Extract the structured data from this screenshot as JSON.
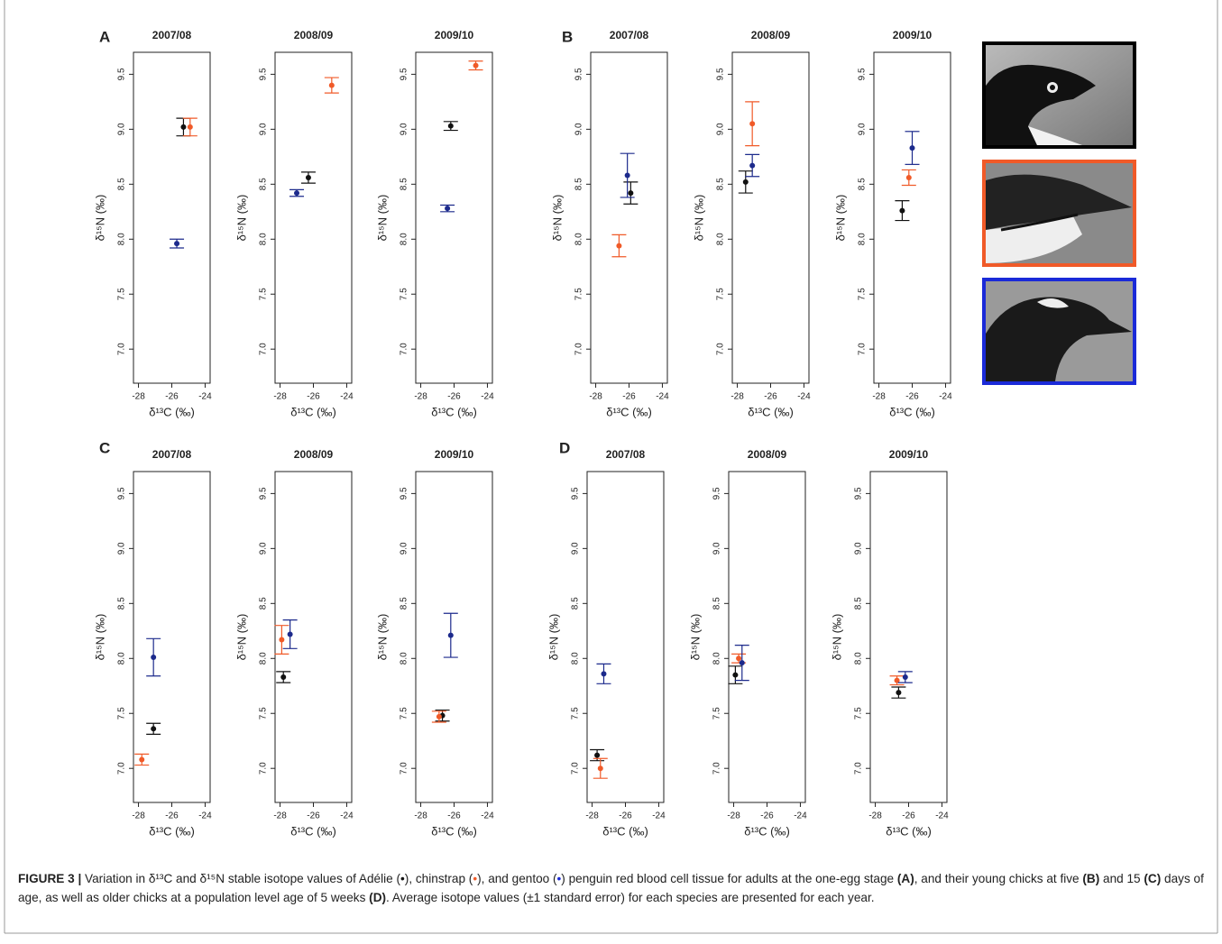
{
  "panels": [
    "A",
    "B",
    "C",
    "D"
  ],
  "chart_data": [
    {
      "type": "scatter",
      "title": "2007/08",
      "xlabel": "δ¹³C (‰)",
      "ylabel": "δ¹⁵N (‰)",
      "xlim": [
        -28.3,
        -23.7
      ],
      "ylim": [
        6.69,
        9.7
      ],
      "xticks": [
        -28,
        -26,
        -24
      ],
      "yticks": [
        {
          "value": 7,
          "label": "7.0"
        },
        7.5,
        {
          "value": 8,
          "label": "8.0"
        },
        8.5,
        {
          "value": 9,
          "label": "9.0"
        },
        9.5
      ],
      "series": [
        {
          "color": "#111111",
          "x": [
            -25.3
          ],
          "values": [
            9.02
          ],
          "yerr": [
            0.08
          ]
        },
        {
          "color": "#f05a28",
          "x": [
            -24.9
          ],
          "values": [
            9.02
          ],
          "yerr": [
            0.08
          ]
        },
        {
          "color": "#1c2a8c",
          "x": [
            -25.7
          ],
          "values": [
            7.96
          ],
          "yerr": [
            0.04
          ]
        }
      ]
    },
    {
      "type": "scatter",
      "title": "2008/09",
      "xlabel": "δ¹³C (‰)",
      "ylabel": "δ¹⁵N (‰)",
      "xlim": [
        -28.3,
        -23.7
      ],
      "ylim": [
        6.69,
        9.7
      ],
      "xticks": [
        -28,
        -26,
        -24
      ],
      "yticks": [
        {
          "value": 7,
          "label": "7.0"
        },
        7.5,
        {
          "value": 8,
          "label": "8.0"
        },
        8.5,
        {
          "value": 9,
          "label": "9.0"
        },
        9.5
      ],
      "series": [
        {
          "color": "#111111",
          "x": [
            -26.3
          ],
          "values": [
            8.56
          ],
          "yerr": [
            0.05
          ]
        },
        {
          "color": "#f05a28",
          "x": [
            -24.9
          ],
          "values": [
            9.4
          ],
          "yerr": [
            0.07
          ]
        },
        {
          "color": "#1c2a8c",
          "x": [
            -27.0
          ],
          "values": [
            8.42
          ],
          "yerr": [
            0.03
          ]
        }
      ]
    },
    {
      "type": "scatter",
      "title": "2009/10",
      "xlabel": "δ¹³C (‰)",
      "ylabel": "δ¹⁵N (‰)",
      "xlim": [
        -28.3,
        -23.7
      ],
      "ylim": [
        6.69,
        9.7
      ],
      "xticks": [
        -28,
        -26,
        -24
      ],
      "yticks": [
        {
          "value": 7,
          "label": "7.0"
        },
        7.5,
        {
          "value": 8,
          "label": "8.0"
        },
        8.5,
        {
          "value": 9,
          "label": "9.0"
        },
        9.5
      ],
      "series": [
        {
          "color": "#111111",
          "x": [
            -26.2
          ],
          "values": [
            9.03
          ],
          "yerr": [
            0.04
          ]
        },
        {
          "color": "#f05a28",
          "x": [
            -24.7
          ],
          "values": [
            9.58
          ],
          "yerr": [
            0.04
          ]
        },
        {
          "color": "#1c2a8c",
          "x": [
            -26.4
          ],
          "values": [
            8.28
          ],
          "yerr": [
            0.03
          ]
        }
      ]
    },
    {
      "type": "scatter",
      "title": "2007/08",
      "xlabel": "δ¹³C (‰)",
      "ylabel": "δ¹⁵N (‰)",
      "xlim": [
        -28.3,
        -23.7
      ],
      "ylim": [
        6.69,
        9.7
      ],
      "xticks": [
        -28,
        -26,
        -24
      ],
      "yticks": [
        {
          "value": 7,
          "label": "7.0"
        },
        7.5,
        {
          "value": 8,
          "label": "8.0"
        },
        8.5,
        {
          "value": 9,
          "label": "9.0"
        },
        9.5
      ],
      "series": [
        {
          "color": "#111111",
          "x": [
            -25.9
          ],
          "values": [
            8.42
          ],
          "yerr": [
            0.1
          ]
        },
        {
          "color": "#f05a28",
          "x": [
            -26.6
          ],
          "values": [
            7.94
          ],
          "yerr": [
            0.1
          ]
        },
        {
          "color": "#1c2a8c",
          "x": [
            -26.1
          ],
          "values": [
            8.58
          ],
          "yerr": [
            0.2
          ]
        }
      ]
    },
    {
      "type": "scatter",
      "title": "2008/09",
      "xlabel": "δ¹³C (‰)",
      "ylabel": "δ¹⁵N (‰)",
      "xlim": [
        -28.3,
        -23.7
      ],
      "ylim": [
        6.69,
        9.7
      ],
      "xticks": [
        -28,
        -26,
        -24
      ],
      "yticks": [
        {
          "value": 7,
          "label": "7.0"
        },
        7.5,
        {
          "value": 8,
          "label": "8.0"
        },
        8.5,
        {
          "value": 9,
          "label": "9.0"
        },
        9.5
      ],
      "series": [
        {
          "color": "#111111",
          "x": [
            -27.5
          ],
          "values": [
            8.52
          ],
          "yerr": [
            0.1
          ]
        },
        {
          "color": "#f05a28",
          "x": [
            -27.1
          ],
          "values": [
            9.05
          ],
          "yerr": [
            0.2
          ]
        },
        {
          "color": "#1c2a8c",
          "x": [
            -27.1
          ],
          "values": [
            8.67
          ],
          "yerr": [
            0.1
          ]
        }
      ]
    },
    {
      "type": "scatter",
      "title": "2009/10",
      "xlabel": "δ¹³C (‰)",
      "ylabel": "δ¹⁵N (‰)",
      "xlim": [
        -28.3,
        -23.7
      ],
      "ylim": [
        6.69,
        9.7
      ],
      "xticks": [
        -28,
        -26,
        -24
      ],
      "yticks": [
        {
          "value": 7,
          "label": "7.0"
        },
        7.5,
        {
          "value": 8,
          "label": "8.0"
        },
        8.5,
        {
          "value": 9,
          "label": "9.0"
        },
        9.5
      ],
      "series": [
        {
          "color": "#111111",
          "x": [
            -26.6
          ],
          "values": [
            8.26
          ],
          "yerr": [
            0.09
          ]
        },
        {
          "color": "#f05a28",
          "x": [
            -26.2
          ],
          "values": [
            8.56
          ],
          "yerr": [
            0.07
          ]
        },
        {
          "color": "#1c2a8c",
          "x": [
            -26.0
          ],
          "values": [
            8.83
          ],
          "yerr": [
            0.15
          ]
        }
      ]
    },
    {
      "type": "scatter",
      "title": "2007/08",
      "xlabel": "δ¹³C (‰)",
      "ylabel": "δ¹⁵N (‰)",
      "xlim": [
        -28.3,
        -23.7
      ],
      "ylim": [
        6.69,
        9.7
      ],
      "xticks": [
        -28,
        -26,
        -24
      ],
      "yticks": [
        {
          "value": 7,
          "label": "7.0"
        },
        7.5,
        {
          "value": 8,
          "label": "8.0"
        },
        8.5,
        {
          "value": 9,
          "label": "9.0"
        },
        9.5
      ],
      "series": [
        {
          "color": "#111111",
          "x": [
            -27.1
          ],
          "values": [
            7.36
          ],
          "yerr": [
            0.05
          ]
        },
        {
          "color": "#f05a28",
          "x": [
            -27.8
          ],
          "values": [
            7.08
          ],
          "yerr": [
            0.05
          ]
        },
        {
          "color": "#1c2a8c",
          "x": [
            -27.1
          ],
          "values": [
            8.01
          ],
          "yerr": [
            0.17
          ]
        }
      ]
    },
    {
      "type": "scatter",
      "title": "2008/09",
      "xlabel": "δ¹³C (‰)",
      "ylabel": "δ¹⁵N (‰)",
      "xlim": [
        -28.3,
        -23.7
      ],
      "ylim": [
        6.69,
        9.7
      ],
      "xticks": [
        -28,
        -26,
        -24
      ],
      "yticks": [
        {
          "value": 7,
          "label": "7.0"
        },
        7.5,
        {
          "value": 8,
          "label": "8.0"
        },
        8.5,
        {
          "value": 9,
          "label": "9.0"
        },
        9.5
      ],
      "series": [
        {
          "color": "#111111",
          "x": [
            -27.8
          ],
          "values": [
            7.83
          ],
          "yerr": [
            0.05
          ]
        },
        {
          "color": "#f05a28",
          "x": [
            -27.9
          ],
          "values": [
            8.17
          ],
          "yerr": [
            0.13
          ]
        },
        {
          "color": "#1c2a8c",
          "x": [
            -27.4
          ],
          "values": [
            8.22
          ],
          "yerr": [
            0.13
          ]
        }
      ]
    },
    {
      "type": "scatter",
      "title": "2009/10",
      "xlabel": "δ¹³C (‰)",
      "ylabel": "δ¹⁵N (‰)",
      "xlim": [
        -28.3,
        -23.7
      ],
      "ylim": [
        6.69,
        9.7
      ],
      "xticks": [
        -28,
        -26,
        -24
      ],
      "yticks": [
        {
          "value": 7,
          "label": "7.0"
        },
        7.5,
        {
          "value": 8,
          "label": "8.0"
        },
        8.5,
        {
          "value": 9,
          "label": "9.0"
        },
        9.5
      ],
      "series": [
        {
          "color": "#111111",
          "x": [
            -26.7
          ],
          "values": [
            7.48
          ],
          "yerr": [
            0.05
          ]
        },
        {
          "color": "#f05a28",
          "x": [
            -26.9
          ],
          "values": [
            7.47
          ],
          "yerr": [
            0.05
          ]
        },
        {
          "color": "#1c2a8c",
          "x": [
            -26.2
          ],
          "values": [
            8.21
          ],
          "yerr": [
            0.2
          ]
        }
      ]
    },
    {
      "type": "scatter",
      "title": "2007/08",
      "xlabel": "δ¹³C (‰)",
      "ylabel": "δ¹⁵N (‰)",
      "xlim": [
        -28.3,
        -23.7
      ],
      "ylim": [
        6.69,
        9.7
      ],
      "xticks": [
        -28,
        -26,
        -24
      ],
      "yticks": [
        {
          "value": 7,
          "label": "7.0"
        },
        7.5,
        {
          "value": 8,
          "label": "8.0"
        },
        8.5,
        {
          "value": 9,
          "label": "9.0"
        },
        9.5
      ],
      "series": [
        {
          "color": "#111111",
          "x": [
            -27.7
          ],
          "values": [
            7.12
          ],
          "yerr": [
            0.05
          ]
        },
        {
          "color": "#f05a28",
          "x": [
            -27.5
          ],
          "values": [
            7.0
          ],
          "yerr": [
            0.09
          ]
        },
        {
          "color": "#1c2a8c",
          "x": [
            -27.3
          ],
          "values": [
            7.86
          ],
          "yerr": [
            0.09
          ]
        }
      ]
    },
    {
      "type": "scatter",
      "title": "2008/09",
      "xlabel": "δ¹³C (‰)",
      "ylabel": "δ¹⁵N (‰)",
      "xlim": [
        -28.3,
        -23.7
      ],
      "ylim": [
        6.69,
        9.7
      ],
      "xticks": [
        -28,
        -26,
        -24
      ],
      "yticks": [
        {
          "value": 7,
          "label": "7.0"
        },
        7.5,
        {
          "value": 8,
          "label": "8.0"
        },
        8.5,
        {
          "value": 9,
          "label": "9.0"
        },
        9.5
      ],
      "series": [
        {
          "color": "#111111",
          "x": [
            -27.9
          ],
          "values": [
            7.85
          ],
          "yerr": [
            0.08
          ]
        },
        {
          "color": "#f05a28",
          "x": [
            -27.7
          ],
          "values": [
            8.0
          ],
          "yerr": [
            0.04
          ]
        },
        {
          "color": "#1c2a8c",
          "x": [
            -27.5
          ],
          "values": [
            7.96
          ],
          "yerr": [
            0.16
          ]
        }
      ]
    },
    {
      "type": "scatter",
      "title": "2009/10",
      "xlabel": "δ¹³C (‰)",
      "ylabel": "δ¹⁵N (‰)",
      "xlim": [
        -28.3,
        -23.7
      ],
      "ylim": [
        6.69,
        9.7
      ],
      "xticks": [
        -28,
        -26,
        -24
      ],
      "yticks": [
        {
          "value": 7,
          "label": "7.0"
        },
        7.5,
        {
          "value": 8,
          "label": "8.0"
        },
        8.5,
        {
          "value": 9,
          "label": "9.0"
        },
        9.5
      ],
      "series": [
        {
          "color": "#111111",
          "x": [
            -26.6
          ],
          "values": [
            7.69
          ],
          "yerr": [
            0.05
          ]
        },
        {
          "color": "#f05a28",
          "x": [
            -26.7
          ],
          "values": [
            7.8
          ],
          "yerr": [
            0.04
          ]
        },
        {
          "color": "#1c2a8c",
          "x": [
            -26.2
          ],
          "values": [
            7.83
          ],
          "yerr": [
            0.05
          ]
        }
      ]
    }
  ],
  "caption": {
    "parts": [
      "FIGURE 3 |",
      " Variation in δ¹³C and δ¹⁵N stable isotope values of Adélie (",
      "•",
      "), chinstrap (",
      "•",
      "), and gentoo (",
      "•",
      ") penguin red blood cell tissue for adults at the one-egg stage ",
      "(A)",
      ", and their young chicks at five ",
      "(B)",
      " and 15 ",
      "(C)",
      " days of age, as well as older chicks at a population level age of 5 weeks ",
      "(D)",
      ". Average isotope values (±1 standard error) for each species are presented for each year."
    ]
  }
}
